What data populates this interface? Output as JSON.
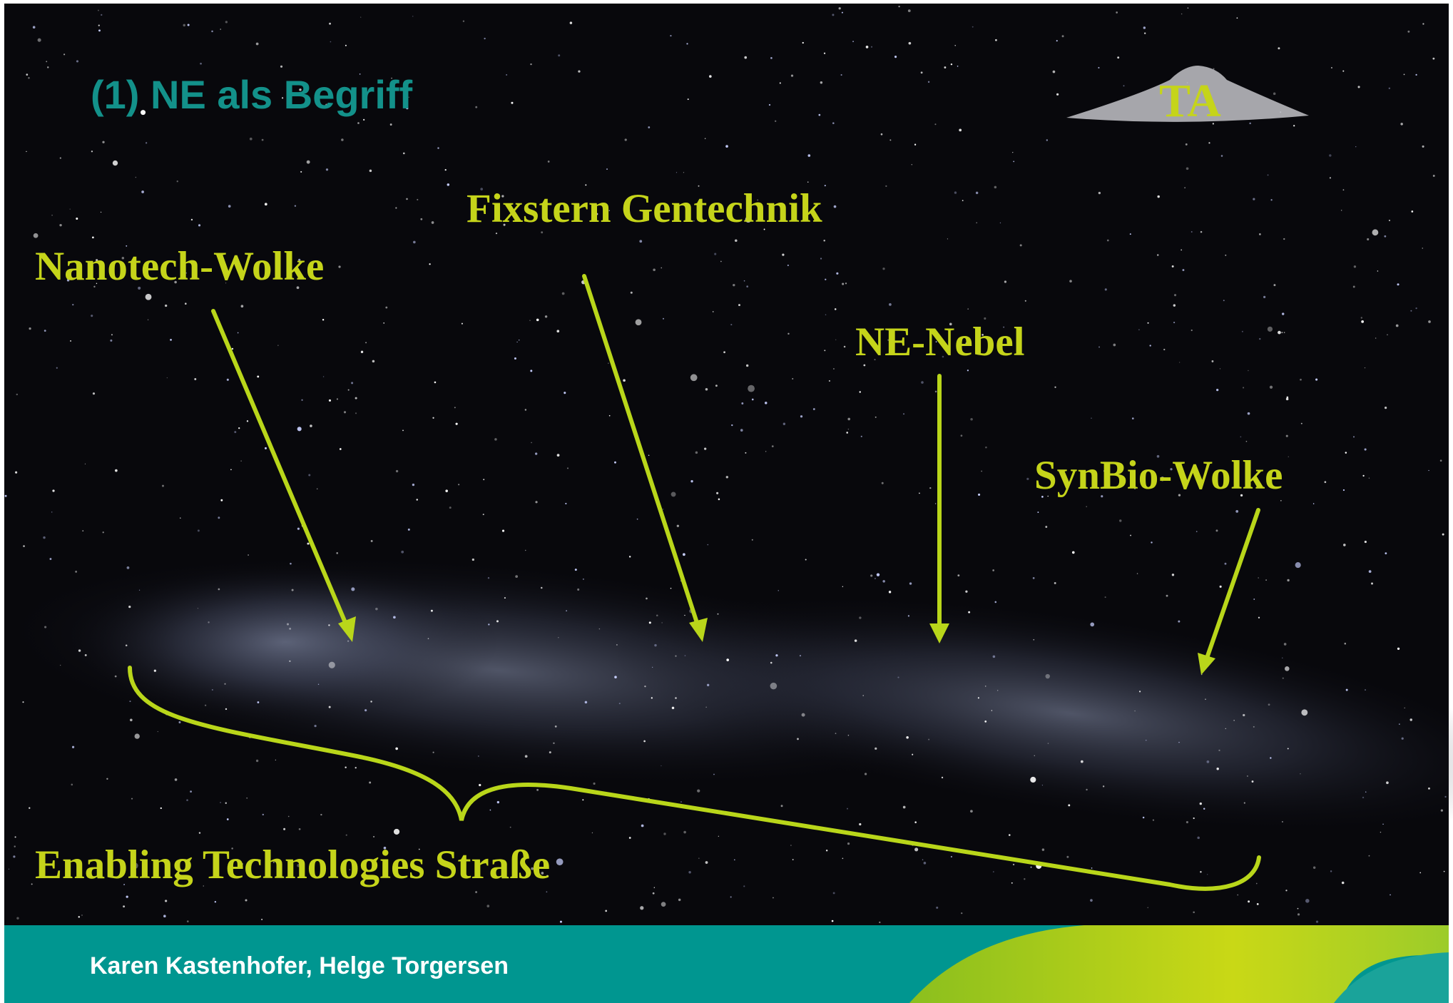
{
  "slide": {
    "title": "(1) NE als Begriff",
    "logo": "TA",
    "labels": [
      "Fixstern Gentechnik",
      "Nanotech-Wolke",
      "NE-Nebel",
      "SynBio-Wolke",
      "Enabling Technologies Straße"
    ],
    "footer": "Karen Kastenhofer, Helge Torgersen"
  }
}
